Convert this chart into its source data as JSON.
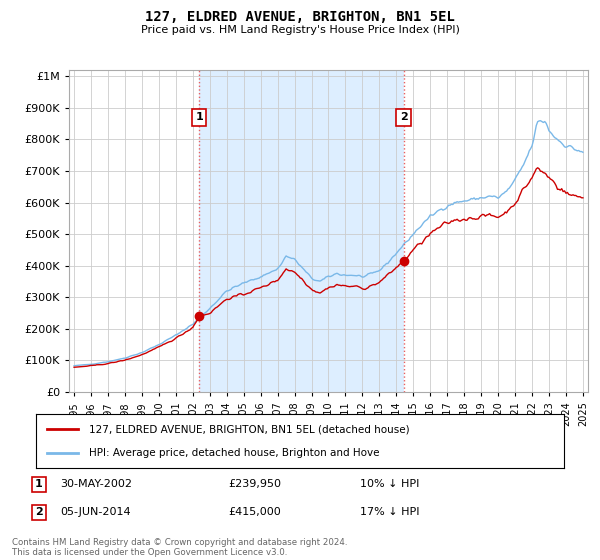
{
  "title": "127, ELDRED AVENUE, BRIGHTON, BN1 5EL",
  "subtitle": "Price paid vs. HM Land Registry's House Price Index (HPI)",
  "ytick_values": [
    0,
    100000,
    200000,
    300000,
    400000,
    500000,
    600000,
    700000,
    800000,
    900000,
    1000000
  ],
  "ylim": [
    0,
    1020000
  ],
  "xlim_start": 1994.7,
  "xlim_end": 2025.3,
  "hpi_color": "#7ab8e8",
  "price_color": "#cc0000",
  "shade_color": "#ddeeff",
  "marker1_date": 2002.38,
  "marker1_price": 239950,
  "marker2_date": 2014.43,
  "marker2_price": 415000,
  "vline_color": "#e86060",
  "vline_style": ":",
  "annotation_box_color": "#cc0000",
  "legend_label_price": "127, ELDRED AVENUE, BRIGHTON, BN1 5EL (detached house)",
  "legend_label_hpi": "HPI: Average price, detached house, Brighton and Hove",
  "note1_label": "1",
  "note1_date": "30-MAY-2002",
  "note1_price": "£239,950",
  "note1_hpi": "10% ↓ HPI",
  "note2_label": "2",
  "note2_date": "05-JUN-2014",
  "note2_price": "£415,000",
  "note2_hpi": "17% ↓ HPI",
  "footer": "Contains HM Land Registry data © Crown copyright and database right 2024.\nThis data is licensed under the Open Government Licence v3.0.",
  "bg_color": "#ffffff",
  "grid_color": "#cccccc"
}
